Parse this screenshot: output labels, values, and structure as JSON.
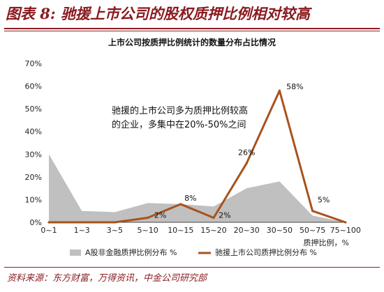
{
  "figure": {
    "title": "图表 8: 驰援上市公司的股权质押比例相对较高",
    "source": "资料来源：东方财富，万得资讯，中金公司研究部"
  },
  "annotation": {
    "line1": "驰援的上市公司多为质押比例较高",
    "line2": "的企业，多集中在20%-50%之间"
  },
  "colors": {
    "area": "#c0c0c0",
    "line": "#a8521c",
    "title": "#8a1a1f"
  },
  "chart_data": {
    "type": "line",
    "title": "上市公司按质押比例统计的数量分布占比情况",
    "xlabel": "质押比例，%",
    "ylabel": "",
    "categories": [
      "0~1",
      "1~3",
      "3~5",
      "5~10",
      "10~15",
      "15~20",
      "20~30",
      "30~50",
      "50~75",
      "75~100"
    ],
    "ylim": [
      0,
      70
    ],
    "yticks": [
      0,
      10,
      20,
      30,
      40,
      50,
      60,
      70
    ],
    "ytick_labels": [
      "0%",
      "10%",
      "20%",
      "30%",
      "40%",
      "50%",
      "60%",
      "70%"
    ],
    "legend_position": "bottom",
    "series": [
      {
        "name": "A股非金融质押比例分布 %",
        "style": "area",
        "values": [
          30,
          5,
          4.5,
          8.5,
          8,
          7,
          15,
          18,
          3,
          0
        ]
      },
      {
        "name": "驰援上市公司质押比例分布 %",
        "style": "line",
        "values": [
          0,
          0,
          0,
          2,
          8,
          2,
          26,
          58,
          5,
          0
        ],
        "data_labels": [
          "",
          "",
          "",
          "2%",
          "8%",
          "2%",
          "26%",
          "58%",
          "5%",
          ""
        ]
      }
    ]
  }
}
